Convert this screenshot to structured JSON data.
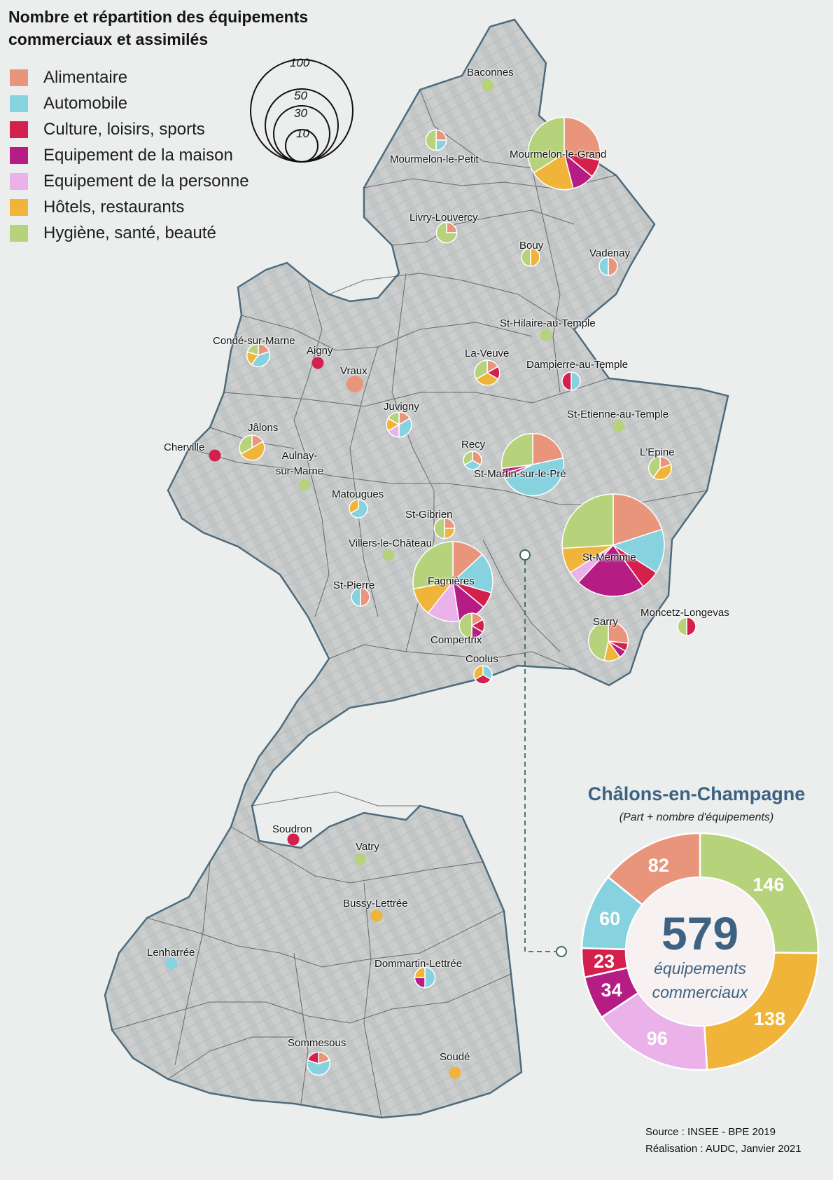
{
  "title": "Nombre et répartition des équipements commerciaux et assimilés",
  "legend": [
    {
      "key": "alimentaire",
      "label": "Alimentaire",
      "color": "#e8957b"
    },
    {
      "key": "automobile",
      "label": "Automobile",
      "color": "#86d2df"
    },
    {
      "key": "culture",
      "label": "Culture, loisirs, sports",
      "color": "#d4204c"
    },
    {
      "key": "maison",
      "label": "Equipement de la maison",
      "color": "#b51d85"
    },
    {
      "key": "personne",
      "label": "Equipement de la personne",
      "color": "#ebb2ea"
    },
    {
      "key": "hotels",
      "label": "Hôtels, restaurants",
      "color": "#f0b43a"
    },
    {
      "key": "hygiene",
      "label": "Hygiène, santé, beauté",
      "color": "#b6d37b"
    }
  ],
  "size_legend": [
    "100",
    "50",
    "30",
    "10"
  ],
  "places": [
    {
      "name": "Baconnes",
      "dot": "hygiene"
    },
    {
      "name": "Mourmelon-le-Petit",
      "pie": [
        1,
        1,
        0,
        0,
        0,
        0,
        2
      ]
    },
    {
      "name": "Mourmelon-le-Grand",
      "pie": [
        14,
        0,
        4,
        5,
        0,
        10,
        17
      ]
    },
    {
      "name": "Livry-Louvercy",
      "pie": [
        1,
        0,
        0,
        0,
        0,
        0,
        3
      ]
    },
    {
      "name": "Bouy",
      "pie": [
        0,
        0,
        0,
        0,
        0,
        1,
        1
      ]
    },
    {
      "name": "Vadenay",
      "pie": [
        1,
        1,
        0,
        0,
        0,
        0,
        0
      ]
    },
    {
      "name": "St-Hilaire-au-Temple",
      "dot": "hygiene"
    },
    {
      "name": "Condé-sur-Marne",
      "pie": [
        1,
        2,
        0,
        0,
        0,
        1,
        1
      ]
    },
    {
      "name": "Aigny",
      "dot": "culture"
    },
    {
      "name": "Vraux",
      "dot": "alimentaire"
    },
    {
      "name": "La-Veuve",
      "pie": [
        1,
        0,
        1,
        0,
        0,
        2,
        2
      ]
    },
    {
      "name": "Dampierre-au-Temple",
      "pie": [
        0,
        1,
        1,
        0,
        0,
        0,
        0
      ]
    },
    {
      "name": "Juvigny",
      "pie": [
        1,
        2,
        0,
        0,
        1,
        1,
        1
      ]
    },
    {
      "name": "St-Etienne-au-Temple",
      "dot": "hygiene"
    },
    {
      "name": "Jâlons",
      "pie": [
        1,
        0,
        0,
        0,
        0,
        3,
        2
      ]
    },
    {
      "name": "Cherville",
      "dot": "culture"
    },
    {
      "name": "Recy",
      "pie": [
        1,
        1,
        0,
        0,
        0,
        0,
        1
      ]
    },
    {
      "name": "St-Martin-sur-le-Pré",
      "pie": [
        8,
        17,
        1,
        1,
        0,
        0,
        10
      ]
    },
    {
      "name": "L'Epine",
      "pie": [
        1,
        0,
        0,
        0,
        0,
        2,
        2
      ]
    },
    {
      "name": "Aulnay-sur-Marne",
      "dot": "hygiene"
    },
    {
      "name": "Matougues",
      "pie": [
        0,
        2,
        0,
        0,
        0,
        1,
        0
      ]
    },
    {
      "name": "St-Gibrien",
      "pie": [
        1,
        0,
        0,
        0,
        0,
        1,
        2
      ]
    },
    {
      "name": "Villers-le-Château",
      "dot": "hygiene"
    },
    {
      "name": "St-Memmie",
      "pie": [
        20,
        14,
        6,
        22,
        4,
        8,
        26
      ]
    },
    {
      "name": "Fagnières",
      "pie": [
        8,
        10,
        4,
        7,
        8,
        7,
        17
      ]
    },
    {
      "name": "St-Pierre",
      "pie": [
        1,
        1,
        0,
        0,
        0,
        0,
        0
      ]
    },
    {
      "name": "Compertrix",
      "pie": [
        1,
        0,
        1,
        1,
        0,
        0,
        3
      ]
    },
    {
      "name": "Sarry",
      "pie": [
        4,
        0,
        1,
        1,
        0,
        2,
        7
      ]
    },
    {
      "name": "Moncetz-Longevas",
      "pie": [
        0,
        0,
        1,
        0,
        0,
        0,
        1
      ]
    },
    {
      "name": "Coolus",
      "pie": [
        0,
        1,
        1,
        0,
        0,
        1,
        0
      ]
    },
    {
      "name": "Soudron",
      "dot": "culture"
    },
    {
      "name": "Vatry",
      "dot": "hygiene"
    },
    {
      "name": "Bussy-Lettrée",
      "dot": "hotels"
    },
    {
      "name": "Lenharrée",
      "dot": "automobile"
    },
    {
      "name": "Dommartin-Lettrée",
      "pie": [
        0,
        2,
        0,
        1,
        0,
        1,
        0
      ]
    },
    {
      "name": "Sommesous",
      "pie": [
        1,
        3,
        1,
        0,
        0,
        0,
        0
      ]
    },
    {
      "name": "Soudé",
      "dot": "hotels"
    }
  ],
  "focus": {
    "title": "Châlons-en-Champagne",
    "subtitle": "(Part + nombre d'équipements)",
    "total": "579",
    "total_line1": "équipements",
    "total_line2": "commerciaux",
    "segments": [
      {
        "key": "hygiene",
        "value": 146
      },
      {
        "key": "hotels",
        "value": 138
      },
      {
        "key": "personne",
        "value": 96
      },
      {
        "key": "maison",
        "value": 34
      },
      {
        "key": "culture",
        "value": 23
      },
      {
        "key": "automobile",
        "value": 60
      },
      {
        "key": "alimentaire",
        "value": 82
      }
    ]
  },
  "source": {
    "line1": "Source : INSEE - BPE 2019",
    "line2": "Réalisation : AUDC, Janvier 2021"
  }
}
